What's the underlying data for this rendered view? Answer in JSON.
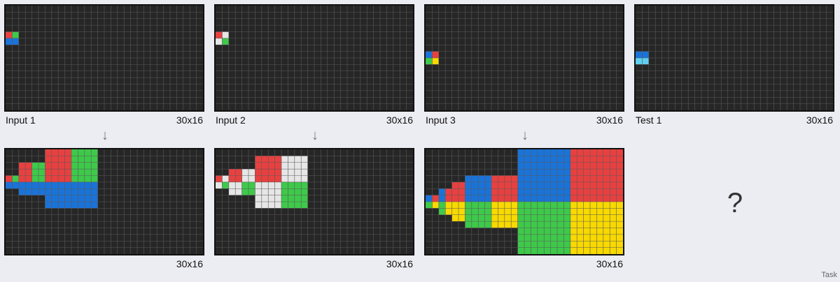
{
  "colors": {
    "bg": "#262626",
    "gridline": "#5a5a5a",
    "R": "#e84040",
    "G": "#3ec94a",
    "B": "#1a73d8",
    "W": "#e6e6e6",
    "Y": "#f8d900",
    "C": "#5fd0f0"
  },
  "arrow_glyph": "↓",
  "question_glyph": "?",
  "footer_tag": "Task",
  "panels": [
    {
      "id": "input-1",
      "label": "Input 1",
      "size_label": "30x16",
      "cols": 30,
      "rows": 16,
      "cells": [
        [
          4,
          0,
          "R"
        ],
        [
          4,
          1,
          "G"
        ],
        [
          5,
          0,
          "B"
        ],
        [
          5,
          1,
          "B"
        ]
      ]
    },
    {
      "id": "input-2",
      "label": "Input 2",
      "size_label": "30x16",
      "cols": 30,
      "rows": 16,
      "cells": [
        [
          4,
          0,
          "R"
        ],
        [
          4,
          1,
          "W"
        ],
        [
          5,
          0,
          "W"
        ],
        [
          5,
          1,
          "G"
        ]
      ]
    },
    {
      "id": "input-3",
      "label": "Input 3",
      "size_label": "30x16",
      "cols": 30,
      "rows": 16,
      "cells": [
        [
          7,
          0,
          "B"
        ],
        [
          7,
          1,
          "R"
        ],
        [
          8,
          0,
          "G"
        ],
        [
          8,
          1,
          "Y"
        ]
      ]
    },
    {
      "id": "test-1",
      "label": "Test 1",
      "size_label": "30x16",
      "cols": 30,
      "rows": 16,
      "cells": [
        [
          7,
          0,
          "B"
        ],
        [
          7,
          1,
          "B"
        ],
        [
          8,
          0,
          "C"
        ],
        [
          8,
          1,
          "C"
        ]
      ]
    },
    {
      "id": "output-1",
      "label": "",
      "size_label": "30x16",
      "cols": 30,
      "rows": 16,
      "cells": [
        [
          4,
          0,
          "R"
        ],
        [
          4,
          1,
          "G"
        ],
        [
          5,
          0,
          "B"
        ],
        [
          5,
          1,
          "B"
        ],
        [
          3,
          2,
          "R"
        ],
        [
          3,
          3,
          "R"
        ],
        [
          3,
          4,
          "G"
        ],
        [
          3,
          5,
          "G"
        ],
        [
          2,
          2,
          "R"
        ],
        [
          2,
          3,
          "R"
        ],
        [
          2,
          4,
          "G"
        ],
        [
          2,
          5,
          "G"
        ],
        [
          4,
          2,
          "R"
        ],
        [
          4,
          3,
          "R"
        ],
        [
          4,
          4,
          "G"
        ],
        [
          4,
          5,
          "G"
        ],
        [
          5,
          2,
          "B"
        ],
        [
          5,
          3,
          "B"
        ],
        [
          5,
          4,
          "B"
        ],
        [
          5,
          5,
          "B"
        ],
        [
          6,
          2,
          "B"
        ],
        [
          6,
          3,
          "B"
        ],
        [
          6,
          4,
          "B"
        ],
        [
          6,
          5,
          "B"
        ],
        [
          0,
          6,
          "R"
        ],
        [
          0,
          7,
          "R"
        ],
        [
          0,
          8,
          "R"
        ],
        [
          0,
          9,
          "R"
        ],
        [
          0,
          10,
          "G"
        ],
        [
          0,
          11,
          "G"
        ],
        [
          0,
          12,
          "G"
        ],
        [
          0,
          13,
          "G"
        ],
        [
          1,
          6,
          "R"
        ],
        [
          1,
          7,
          "R"
        ],
        [
          1,
          8,
          "R"
        ],
        [
          1,
          9,
          "R"
        ],
        [
          1,
          10,
          "G"
        ],
        [
          1,
          11,
          "G"
        ],
        [
          1,
          12,
          "G"
        ],
        [
          1,
          13,
          "G"
        ],
        [
          2,
          6,
          "R"
        ],
        [
          2,
          7,
          "R"
        ],
        [
          2,
          8,
          "R"
        ],
        [
          2,
          9,
          "R"
        ],
        [
          2,
          10,
          "G"
        ],
        [
          2,
          11,
          "G"
        ],
        [
          2,
          12,
          "G"
        ],
        [
          2,
          13,
          "G"
        ],
        [
          3,
          6,
          "R"
        ],
        [
          3,
          7,
          "R"
        ],
        [
          3,
          8,
          "R"
        ],
        [
          3,
          9,
          "R"
        ],
        [
          3,
          10,
          "G"
        ],
        [
          3,
          11,
          "G"
        ],
        [
          3,
          12,
          "G"
        ],
        [
          3,
          13,
          "G"
        ],
        [
          4,
          6,
          "R"
        ],
        [
          4,
          7,
          "R"
        ],
        [
          4,
          8,
          "R"
        ],
        [
          4,
          9,
          "R"
        ],
        [
          4,
          10,
          "G"
        ],
        [
          4,
          11,
          "G"
        ],
        [
          4,
          12,
          "G"
        ],
        [
          4,
          13,
          "G"
        ],
        [
          5,
          6,
          "B"
        ],
        [
          5,
          7,
          "B"
        ],
        [
          5,
          8,
          "B"
        ],
        [
          5,
          9,
          "B"
        ],
        [
          5,
          10,
          "B"
        ],
        [
          5,
          11,
          "B"
        ],
        [
          5,
          12,
          "B"
        ],
        [
          5,
          13,
          "B"
        ],
        [
          6,
          6,
          "B"
        ],
        [
          6,
          7,
          "B"
        ],
        [
          6,
          8,
          "B"
        ],
        [
          6,
          9,
          "B"
        ],
        [
          6,
          10,
          "B"
        ],
        [
          6,
          11,
          "B"
        ],
        [
          6,
          12,
          "B"
        ],
        [
          6,
          13,
          "B"
        ],
        [
          7,
          6,
          "B"
        ],
        [
          7,
          7,
          "B"
        ],
        [
          7,
          8,
          "B"
        ],
        [
          7,
          9,
          "B"
        ],
        [
          7,
          10,
          "B"
        ],
        [
          7,
          11,
          "B"
        ],
        [
          7,
          12,
          "B"
        ],
        [
          7,
          13,
          "B"
        ],
        [
          8,
          6,
          "B"
        ],
        [
          8,
          7,
          "B"
        ],
        [
          8,
          8,
          "B"
        ],
        [
          8,
          9,
          "B"
        ],
        [
          8,
          10,
          "B"
        ],
        [
          8,
          11,
          "B"
        ],
        [
          8,
          12,
          "B"
        ],
        [
          8,
          13,
          "B"
        ]
      ]
    },
    {
      "id": "output-2",
      "label": "",
      "size_label": "30x16",
      "cols": 30,
      "rows": 16,
      "cells": [
        [
          4,
          0,
          "R"
        ],
        [
          4,
          1,
          "W"
        ],
        [
          5,
          0,
          "W"
        ],
        [
          5,
          1,
          "G"
        ],
        [
          3,
          2,
          "R"
        ],
        [
          3,
          3,
          "R"
        ],
        [
          3,
          4,
          "W"
        ],
        [
          3,
          5,
          "W"
        ],
        [
          4,
          2,
          "R"
        ],
        [
          4,
          3,
          "R"
        ],
        [
          4,
          4,
          "W"
        ],
        [
          4,
          5,
          "W"
        ],
        [
          5,
          2,
          "W"
        ],
        [
          5,
          3,
          "W"
        ],
        [
          5,
          4,
          "G"
        ],
        [
          5,
          5,
          "G"
        ],
        [
          6,
          2,
          "W"
        ],
        [
          6,
          3,
          "W"
        ],
        [
          6,
          4,
          "G"
        ],
        [
          6,
          5,
          "G"
        ],
        [
          1,
          6,
          "R"
        ],
        [
          1,
          7,
          "R"
        ],
        [
          1,
          8,
          "R"
        ],
        [
          1,
          9,
          "R"
        ],
        [
          1,
          10,
          "W"
        ],
        [
          1,
          11,
          "W"
        ],
        [
          1,
          12,
          "W"
        ],
        [
          1,
          13,
          "W"
        ],
        [
          2,
          6,
          "R"
        ],
        [
          2,
          7,
          "R"
        ],
        [
          2,
          8,
          "R"
        ],
        [
          2,
          9,
          "R"
        ],
        [
          2,
          10,
          "W"
        ],
        [
          2,
          11,
          "W"
        ],
        [
          2,
          12,
          "W"
        ],
        [
          2,
          13,
          "W"
        ],
        [
          3,
          6,
          "R"
        ],
        [
          3,
          7,
          "R"
        ],
        [
          3,
          8,
          "R"
        ],
        [
          3,
          9,
          "R"
        ],
        [
          3,
          10,
          "W"
        ],
        [
          3,
          11,
          "W"
        ],
        [
          3,
          12,
          "W"
        ],
        [
          3,
          13,
          "W"
        ],
        [
          4,
          6,
          "R"
        ],
        [
          4,
          7,
          "R"
        ],
        [
          4,
          8,
          "R"
        ],
        [
          4,
          9,
          "R"
        ],
        [
          4,
          10,
          "W"
        ],
        [
          4,
          11,
          "W"
        ],
        [
          4,
          12,
          "W"
        ],
        [
          4,
          13,
          "W"
        ],
        [
          5,
          6,
          "W"
        ],
        [
          5,
          7,
          "W"
        ],
        [
          5,
          8,
          "W"
        ],
        [
          5,
          9,
          "W"
        ],
        [
          5,
          10,
          "G"
        ],
        [
          5,
          11,
          "G"
        ],
        [
          5,
          12,
          "G"
        ],
        [
          5,
          13,
          "G"
        ],
        [
          6,
          6,
          "W"
        ],
        [
          6,
          7,
          "W"
        ],
        [
          6,
          8,
          "W"
        ],
        [
          6,
          9,
          "W"
        ],
        [
          6,
          10,
          "G"
        ],
        [
          6,
          11,
          "G"
        ],
        [
          6,
          12,
          "G"
        ],
        [
          6,
          13,
          "G"
        ],
        [
          7,
          6,
          "W"
        ],
        [
          7,
          7,
          "W"
        ],
        [
          7,
          8,
          "W"
        ],
        [
          7,
          9,
          "W"
        ],
        [
          7,
          10,
          "G"
        ],
        [
          7,
          11,
          "G"
        ],
        [
          7,
          12,
          "G"
        ],
        [
          7,
          13,
          "G"
        ],
        [
          8,
          6,
          "W"
        ],
        [
          8,
          7,
          "W"
        ],
        [
          8,
          8,
          "W"
        ],
        [
          8,
          9,
          "W"
        ],
        [
          8,
          10,
          "G"
        ],
        [
          8,
          11,
          "G"
        ],
        [
          8,
          12,
          "G"
        ],
        [
          8,
          13,
          "G"
        ]
      ]
    },
    {
      "id": "output-3",
      "label": "",
      "size_label": "30x16",
      "cols": 30,
      "rows": 16,
      "blocks": [
        [
          7,
          0,
          1,
          1,
          "B"
        ],
        [
          7,
          1,
          1,
          1,
          "R"
        ],
        [
          8,
          0,
          1,
          1,
          "G"
        ],
        [
          8,
          1,
          1,
          1,
          "Y"
        ],
        [
          6,
          2,
          1,
          1,
          "B"
        ],
        [
          6,
          3,
          1,
          1,
          "R"
        ],
        [
          7,
          2,
          1,
          1,
          "B"
        ],
        [
          7,
          3,
          1,
          1,
          "R"
        ],
        [
          8,
          2,
          1,
          1,
          "G"
        ],
        [
          8,
          3,
          1,
          1,
          "Y"
        ],
        [
          9,
          2,
          1,
          1,
          "G"
        ],
        [
          9,
          3,
          1,
          1,
          "Y"
        ],
        [
          5,
          4,
          3,
          2,
          "R"
        ],
        [
          8,
          4,
          3,
          2,
          "Y"
        ],
        [
          5,
          6,
          3,
          2,
          "B"
        ],
        [
          8,
          6,
          3,
          2,
          "G"
        ],
        [
          4,
          6,
          4,
          4,
          "B"
        ],
        [
          4,
          10,
          4,
          4,
          "R"
        ],
        [
          8,
          6,
          4,
          4,
          "G"
        ],
        [
          8,
          10,
          4,
          4,
          "Y"
        ],
        [
          0,
          14,
          8,
          8,
          "B"
        ],
        [
          0,
          22,
          8,
          8,
          "R"
        ],
        [
          8,
          14,
          8,
          8,
          "G"
        ],
        [
          8,
          22,
          8,
          8,
          "Y"
        ]
      ]
    }
  ]
}
